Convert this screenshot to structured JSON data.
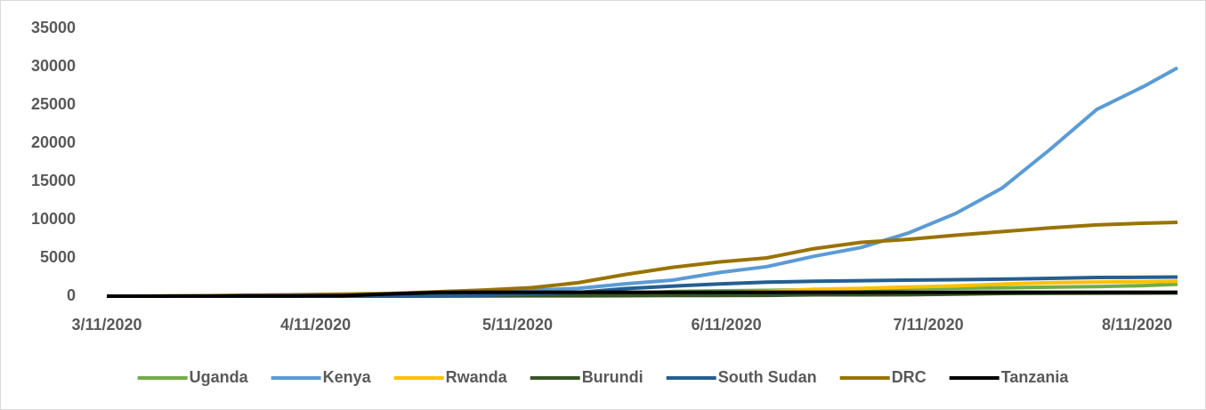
{
  "chart_data": {
    "type": "line",
    "x": [
      "2020-03-11",
      "2020-03-18",
      "2020-03-25",
      "2020-04-01",
      "2020-04-08",
      "2020-04-15",
      "2020-04-22",
      "2020-04-29",
      "2020-05-06",
      "2020-05-13",
      "2020-05-20",
      "2020-05-27",
      "2020-06-03",
      "2020-06-10",
      "2020-06-17",
      "2020-06-24",
      "2020-07-01",
      "2020-07-08",
      "2020-07-15",
      "2020-07-22",
      "2020-07-29",
      "2020-08-05",
      "2020-08-12",
      "2020-08-17"
    ],
    "series": [
      {
        "name": "Uganda",
        "color": "#70ad47",
        "values": [
          0,
          0,
          14,
          44,
          53,
          56,
          74,
          81,
          100,
          139,
          264,
          281,
          616,
          695,
          755,
          847,
          900,
          1000,
          1043,
          1090,
          1180,
          1250,
          1380,
          1560
        ]
      },
      {
        "name": "Kenya",
        "color": "#5b9bd5",
        "values": [
          0,
          7,
          28,
          81,
          184,
          225,
          296,
          384,
          582,
          758,
          1029,
          1618,
          2093,
          3094,
          3860,
          5206,
          6366,
          8250,
          10791,
          14168,
          19125,
          24411,
          27425,
          29849
        ]
      },
      {
        "name": "Rwanda",
        "color": "#ffc000",
        "values": [
          0,
          8,
          41,
          84,
          110,
          138,
          153,
          225,
          268,
          287,
          314,
          349,
          397,
          451,
          597,
          900,
          1025,
          1194,
          1337,
          1582,
          1760,
          1850,
          1900,
          1950
        ]
      },
      {
        "name": "Burundi",
        "color": "#375623",
        "values": [
          0,
          0,
          0,
          2,
          3,
          5,
          11,
          15,
          19,
          42,
          42,
          63,
          83,
          85,
          104,
          170,
          170,
          191,
          269,
          350,
          378,
          395,
          409,
          413
        ]
      },
      {
        "name": "South Sudan",
        "color": "#255e91",
        "values": [
          0,
          0,
          0,
          0,
          2,
          4,
          4,
          35,
          120,
          290,
          481,
          994,
          1317,
          1604,
          1830,
          1942,
          2021,
          2094,
          2148,
          2222,
          2322,
          2437,
          2470,
          2500
        ]
      },
      {
        "name": "DRC",
        "color": "#997300",
        "values": [
          0,
          0,
          48,
          123,
          161,
          267,
          350,
          572,
          797,
          1102,
          1757,
          2833,
          3764,
          4480,
          5000,
          6213,
          7039,
          7432,
          7968,
          8443,
          8931,
          9309,
          9532,
          9650
        ]
      },
      {
        "name": "Tanzania",
        "color": "#000000",
        "values": [
          0,
          0,
          12,
          20,
          24,
          53,
          285,
          480,
          509,
          509,
          509,
          509,
          509,
          509,
          509,
          509,
          509,
          509,
          509,
          509,
          509,
          509,
          509,
          509
        ]
      }
    ],
    "xlim": [
      "2020-03-11",
      "2020-08-17"
    ],
    "xticks": [
      {
        "value": "2020-03-11",
        "label": "3/11/2020"
      },
      {
        "value": "2020-04-11",
        "label": "4/11/2020"
      },
      {
        "value": "2020-05-11",
        "label": "5/11/2020"
      },
      {
        "value": "2020-06-11",
        "label": "6/11/2020"
      },
      {
        "value": "2020-07-11",
        "label": "7/11/2020"
      },
      {
        "value": "2020-08-11",
        "label": "8/11/2020"
      }
    ],
    "ylim": [
      0,
      35000
    ],
    "yticks": [
      0,
      5000,
      10000,
      15000,
      20000,
      25000,
      30000,
      35000
    ],
    "grid": false,
    "legend": "bottom"
  }
}
